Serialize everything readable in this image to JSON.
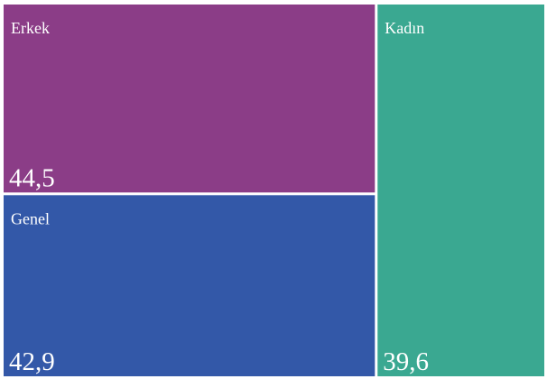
{
  "chart_data": {
    "type": "treemap",
    "categories": [
      "Erkek",
      "Genel",
      "Kadın"
    ],
    "values": [
      44.5,
      42.9,
      39.6
    ],
    "value_labels": [
      "44,5",
      "42,9",
      "39,6"
    ],
    "colors": [
      "#8b3d87",
      "#3358a8",
      "#3aa891"
    ]
  }
}
